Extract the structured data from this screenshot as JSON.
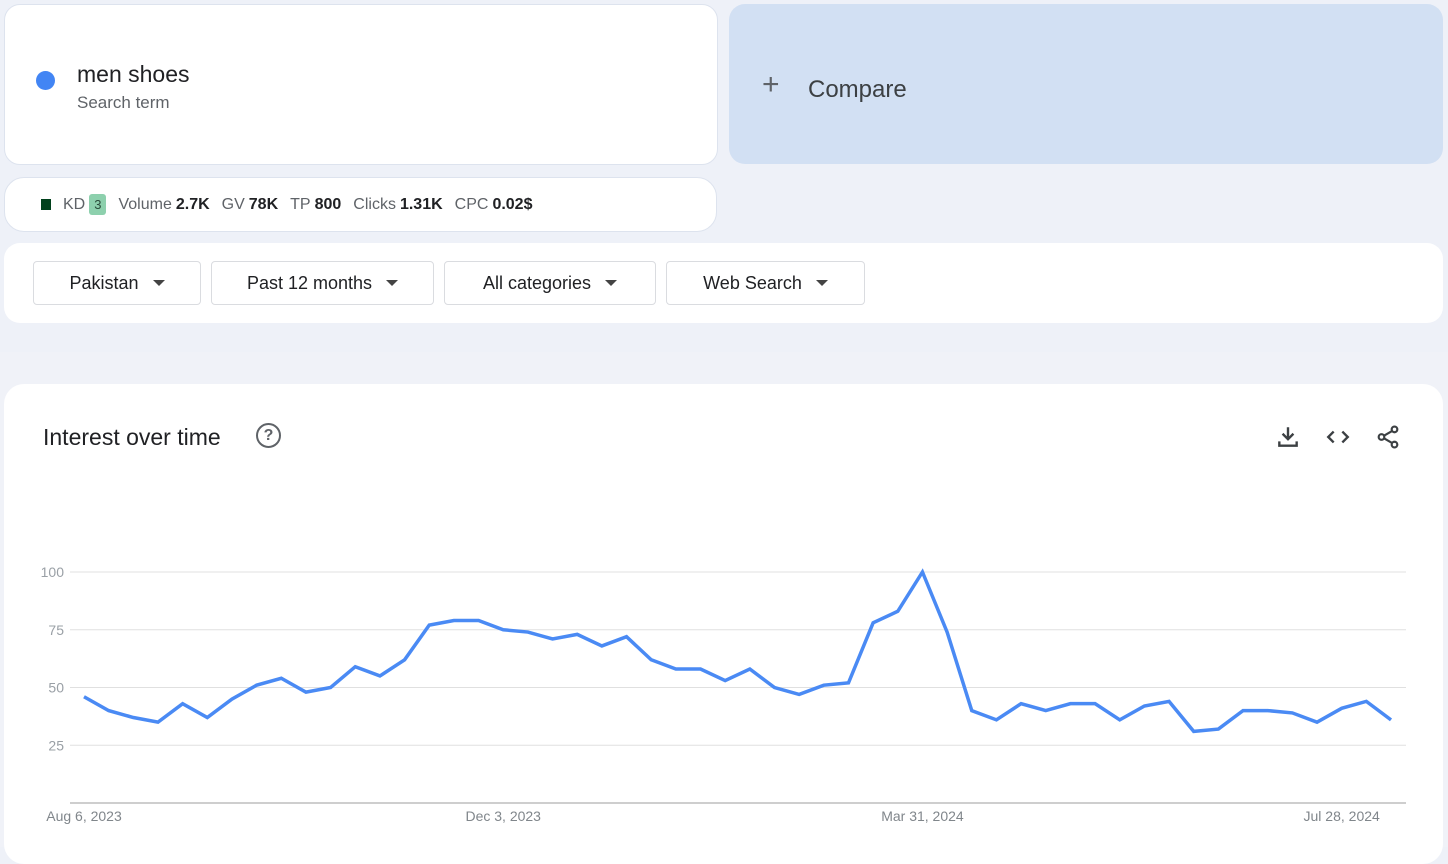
{
  "term": {
    "name": "men shoes",
    "subtitle": "Search term",
    "color": "#4285f4"
  },
  "compare": {
    "label": "Compare"
  },
  "metrics": {
    "kd_label": "KD",
    "kd": "3",
    "volume_label": "Volume",
    "volume": "2.7K",
    "gv_label": "GV",
    "gv": "78K",
    "tp_label": "TP",
    "tp": "800",
    "clicks_label": "Clicks",
    "clicks": "1.31K",
    "cpc_label": "CPC",
    "cpc": "0.02$"
  },
  "filters": [
    "Pakistan",
    "Past 12 months",
    "All categories",
    "Web Search"
  ],
  "chart_title": "Interest over time",
  "chart_data": {
    "type": "line",
    "title": "Interest over time",
    "ylim": [
      0,
      100
    ],
    "yticks": [
      100,
      75,
      50,
      25
    ],
    "grid": true,
    "xtick_labels": [
      "Aug 6, 2023",
      "Dec 3, 2023",
      "Mar 31, 2024",
      "Jul 28, 2024"
    ],
    "xtick_index": [
      0,
      17,
      34,
      51
    ],
    "series": [
      {
        "name": "men shoes",
        "color": "#4a8af4",
        "values": [
          46,
          40,
          37,
          35,
          43,
          37,
          45,
          51,
          54,
          48,
          50,
          59,
          55,
          62,
          77,
          79,
          79,
          75,
          74,
          71,
          73,
          68,
          72,
          62,
          58,
          58,
          53,
          58,
          50,
          47,
          51,
          52,
          78,
          83,
          100,
          74,
          40,
          36,
          43,
          40,
          43,
          43,
          36,
          42,
          44,
          31,
          32,
          40,
          40,
          39,
          35,
          41,
          44,
          36
        ]
      }
    ]
  }
}
